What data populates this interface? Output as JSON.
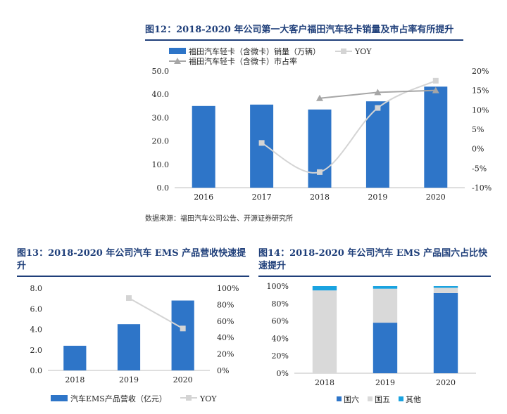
{
  "fig12": {
    "title": "图12：2018-2020 年公司第一大客户福田汽车轻卡销量及市占率有所提升",
    "source": "数据来源：福田汽车公司公告、开源证券研究所",
    "chart_data": {
      "type": "bar",
      "categories": [
        "2016",
        "2017",
        "2018",
        "2019",
        "2020"
      ],
      "series": [
        {
          "name": "福田汽车轻卡（含微卡）销量（万辆）",
          "type": "bar",
          "axis": "left",
          "values": [
            35.0,
            35.6,
            33.5,
            37.0,
            43.3
          ],
          "color": "#2e75c8"
        },
        {
          "name": "YOY",
          "type": "line",
          "axis": "right",
          "values": [
            null,
            1.5,
            -6.0,
            10.5,
            17.5
          ],
          "color": "#d4d4d4"
        },
        {
          "name": "福田汽车轻卡（含微卡）市占率",
          "type": "line",
          "axis": "right",
          "values": [
            null,
            null,
            13.0,
            14.5,
            15.0
          ],
          "color": "#a6a6a6"
        }
      ],
      "ylim": [
        0,
        50
      ],
      "y2lim": [
        -10,
        20
      ],
      "yticks": [
        "0.0",
        "10.0",
        "20.0",
        "30.0",
        "40.0",
        "50.0"
      ],
      "y2ticks": [
        "-10%",
        "-5%",
        "0%",
        "5%",
        "10%",
        "15%",
        "20%"
      ],
      "legend": "top-left"
    }
  },
  "fig13": {
    "title": "图13：2018-2020 年公司汽车 EMS 产品营收快速提升",
    "chart_data": {
      "type": "bar",
      "categories": [
        "2018",
        "2019",
        "2020"
      ],
      "series": [
        {
          "name": "汽车EMS产品营收（亿元）",
          "type": "bar",
          "axis": "left",
          "values": [
            2.4,
            4.5,
            6.8
          ],
          "color": "#2e75c8"
        },
        {
          "name": "YOY",
          "type": "line",
          "axis": "right",
          "values": [
            null,
            88,
            51
          ],
          "color": "#d4d4d4"
        }
      ],
      "ylim": [
        0,
        8
      ],
      "y2lim": [
        0,
        100
      ],
      "yticks": [
        "0.0",
        "2.0",
        "4.0",
        "6.0",
        "8.0"
      ],
      "y2ticks": [
        "0%",
        "20%",
        "40%",
        "60%",
        "80%",
        "100%"
      ],
      "legend": "bottom"
    }
  },
  "fig14": {
    "title": "图14：2018-2020 年公司汽车 EMS 产品国六占比快速提升",
    "chart_data": {
      "type": "bar",
      "stacked": true,
      "categories": [
        "2018",
        "2019",
        "2020"
      ],
      "series": [
        {
          "name": "国六",
          "values": [
            0,
            58,
            92
          ],
          "color": "#2e75c8"
        },
        {
          "name": "国五",
          "values": [
            95,
            39,
            6
          ],
          "color": "#d9d9d9"
        },
        {
          "name": "其他",
          "values": [
            5,
            3,
            2
          ],
          "color": "#1aa3e0"
        }
      ],
      "ylim": [
        0,
        100
      ],
      "yticks": [
        "0%",
        "20%",
        "40%",
        "60%",
        "80%",
        "100%"
      ],
      "legend": "bottom"
    }
  }
}
